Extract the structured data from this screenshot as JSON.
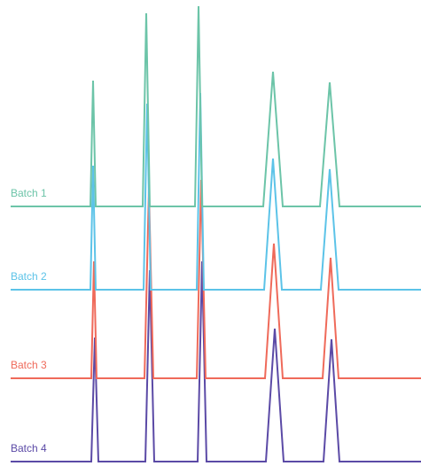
{
  "chart_data": {
    "type": "line",
    "title": "",
    "xlabel": "",
    "ylabel": "",
    "grid": false,
    "legend": "none",
    "series": [
      {
        "name": "Batch 1",
        "color": "#6cc4a8",
        "baseline": 0,
        "peaks": [
          {
            "center": 105,
            "half_width": 3,
            "height": 142
          },
          {
            "center": 165,
            "half_width": 4,
            "height": 218
          },
          {
            "center": 224,
            "half_width": 4,
            "height": 226
          },
          {
            "center": 308,
            "half_width": 11,
            "height": 152
          },
          {
            "center": 372,
            "half_width": 11,
            "height": 140
          }
        ]
      },
      {
        "name": "Batch 2",
        "color": "#5cc3e8",
        "baseline": 0,
        "peaks": [
          {
            "center": 105,
            "half_width": 3,
            "height": 140
          },
          {
            "center": 166,
            "half_width": 4,
            "height": 210
          },
          {
            "center": 226,
            "half_width": 4,
            "height": 222
          },
          {
            "center": 308,
            "half_width": 10,
            "height": 148
          },
          {
            "center": 372,
            "half_width": 10,
            "height": 136
          }
        ]
      },
      {
        "name": "Batch 3",
        "color": "#ef6a5a",
        "baseline": 0,
        "peaks": [
          {
            "center": 106,
            "half_width": 3,
            "height": 132
          },
          {
            "center": 168,
            "half_width": 5,
            "height": 214
          },
          {
            "center": 227,
            "half_width": 5,
            "height": 224
          },
          {
            "center": 309,
            "half_width": 10,
            "height": 152
          },
          {
            "center": 373,
            "half_width": 9,
            "height": 136
          }
        ]
      },
      {
        "name": "Batch 4",
        "color": "#5b4aa6",
        "baseline": 0,
        "peaks": [
          {
            "center": 107,
            "half_width": 4,
            "height": 140
          },
          {
            "center": 169,
            "half_width": 5,
            "height": 216
          },
          {
            "center": 228,
            "half_width": 5,
            "height": 226
          },
          {
            "center": 310,
            "half_width": 10,
            "height": 150
          },
          {
            "center": 374,
            "half_width": 9,
            "height": 138
          }
        ]
      }
    ]
  }
}
